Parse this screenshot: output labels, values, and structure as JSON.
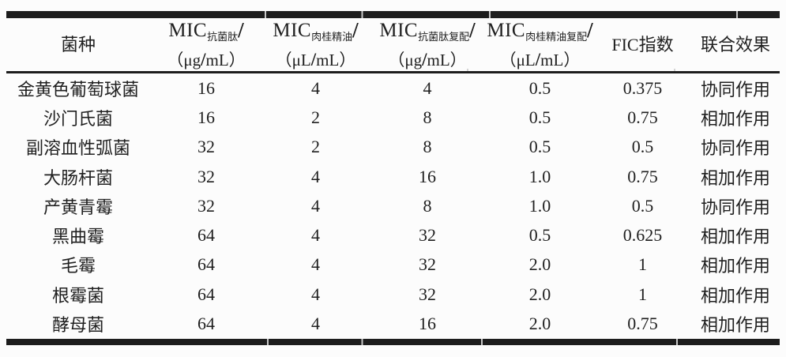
{
  "colors": {
    "text": "#1f1f1f",
    "rule": "#1d1d1d",
    "background": "#fcfcfc"
  },
  "table": {
    "columns": [
      {
        "title": "菌种"
      },
      {
        "label": "MIC",
        "sub": "抗菌肽",
        "slash": "/",
        "unit_pre": "（μg",
        "unit_slash": "/",
        "unit_post": "mL）"
      },
      {
        "label": "MIC",
        "sub": "肉桂精油",
        "slash": "/",
        "unit_pre": "（μL",
        "unit_slash": "/",
        "unit_post": "mL）"
      },
      {
        "label": "MIC",
        "sub": "抗菌肽复配",
        "slash": "/",
        "unit_pre": "（μg",
        "unit_slash": "/",
        "unit_post": "mL）"
      },
      {
        "label": "MIC",
        "sub": "肉桂精油复配",
        "slash": "/",
        "unit_pre": "（μL",
        "unit_slash": "/",
        "unit_post": "mL）"
      },
      {
        "title": "FIC指数"
      },
      {
        "title": "联合效果"
      }
    ],
    "rows": [
      [
        "金黄色葡萄球菌",
        "16",
        "4",
        "4",
        "0.5",
        "0.375",
        "协同作用"
      ],
      [
        "沙门氏菌",
        "16",
        "2",
        "8",
        "0.5",
        "0.75",
        "相加作用"
      ],
      [
        "副溶血性弧菌",
        "32",
        "2",
        "8",
        "0.5",
        "0.5",
        "协同作用"
      ],
      [
        "大肠杆菌",
        "32",
        "4",
        "16",
        "1.0",
        "0.75",
        "相加作用"
      ],
      [
        "产黄青霉",
        "32",
        "4",
        "8",
        "1.0",
        "0.5",
        "协同作用"
      ],
      [
        "黑曲霉",
        "64",
        "4",
        "32",
        "0.5",
        "0.625",
        "相加作用"
      ],
      [
        "毛霉",
        "64",
        "4",
        "32",
        "2.0",
        "1",
        "相加作用"
      ],
      [
        "根霉菌",
        "64",
        "4",
        "32",
        "2.0",
        "1",
        "相加作用"
      ],
      [
        "酵母菌",
        "64",
        "4",
        "16",
        "2.0",
        "0.75",
        "相加作用"
      ]
    ]
  }
}
